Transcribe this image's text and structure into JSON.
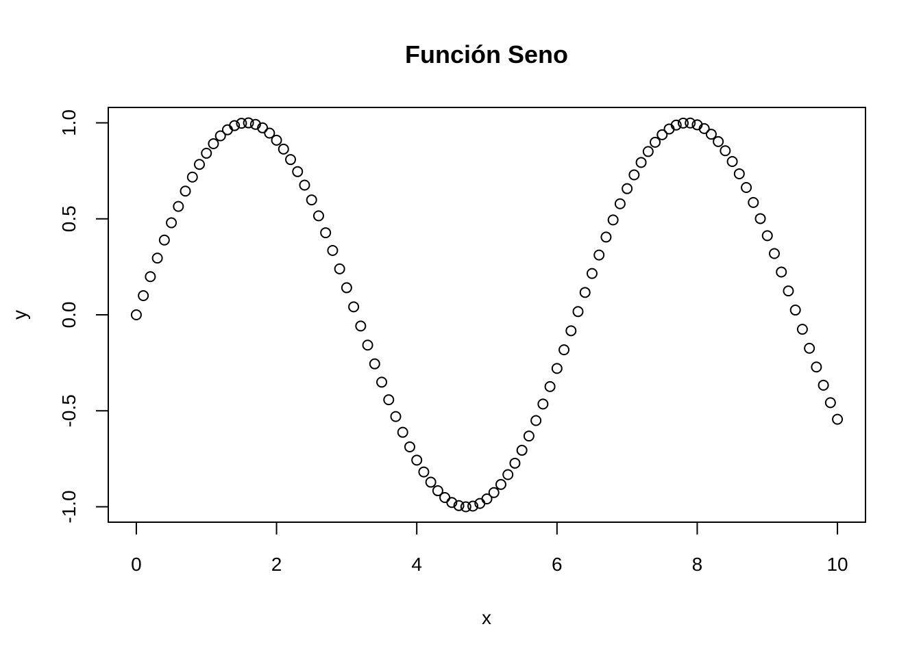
{
  "chart_data": {
    "type": "scatter",
    "title": "Función Seno",
    "xlabel": "x",
    "ylabel": "y",
    "xlim": [
      -0.4,
      10.4
    ],
    "ylim": [
      -1.08,
      1.08
    ],
    "xticks": [
      0,
      2,
      4,
      6,
      8,
      10
    ],
    "xtick_labels": [
      "0",
      "2",
      "4",
      "6",
      "8",
      "10"
    ],
    "yticks": [
      -1.0,
      -0.5,
      0.0,
      0.5,
      1.0
    ],
    "ytick_labels": [
      "-1.0",
      "-0.5",
      "0.0",
      "0.5",
      "1.0"
    ],
    "grid": false,
    "legend": "none",
    "marker": "open-circle",
    "color": "#000000",
    "series": [
      {
        "x": [
          0,
          0.1,
          0.2,
          0.3,
          0.4,
          0.5,
          0.6,
          0.7,
          0.8,
          0.9,
          1,
          1.1,
          1.2,
          1.3,
          1.4,
          1.5,
          1.6,
          1.7,
          1.8,
          1.9,
          2,
          2.1,
          2.2,
          2.3,
          2.4,
          2.5,
          2.6,
          2.7,
          2.8,
          2.9,
          3,
          3.1,
          3.2,
          3.3,
          3.4,
          3.5,
          3.6,
          3.7,
          3.8,
          3.9,
          4,
          4.1,
          4.2,
          4.3,
          4.4,
          4.5,
          4.6,
          4.7,
          4.8,
          4.9,
          5,
          5.1,
          5.2,
          5.3,
          5.4,
          5.5,
          5.6,
          5.7,
          5.8,
          5.9,
          6,
          6.1,
          6.2,
          6.3,
          6.4,
          6.5,
          6.6,
          6.7,
          6.8,
          6.9,
          7,
          7.1,
          7.2,
          7.3,
          7.4,
          7.5,
          7.6,
          7.7,
          7.8,
          7.9,
          8,
          8.1,
          8.2,
          8.3,
          8.4,
          8.5,
          8.6,
          8.7,
          8.8,
          8.9,
          9,
          9.1,
          9.2,
          9.3,
          9.4,
          9.5,
          9.6,
          9.7,
          9.8,
          9.9,
          10
        ],
        "y": [
          0,
          0.0998,
          0.1987,
          0.2955,
          0.3894,
          0.4794,
          0.5646,
          0.6442,
          0.7174,
          0.7833,
          0.8415,
          0.8912,
          0.932,
          0.9636,
          0.9854,
          0.9975,
          0.9996,
          0.9917,
          0.9738,
          0.9463,
          0.9093,
          0.8632,
          0.8085,
          0.7457,
          0.6755,
          0.5985,
          0.5155,
          0.4274,
          0.335,
          0.2392,
          0.1411,
          0.0416,
          -0.0584,
          -0.1577,
          -0.2555,
          -0.3508,
          -0.4425,
          -0.5298,
          -0.6119,
          -0.6878,
          -0.7568,
          -0.8183,
          -0.8716,
          -0.9162,
          -0.9516,
          -0.9775,
          -0.9937,
          -0.9999,
          -0.9962,
          -0.9825,
          -0.9589,
          -0.9258,
          -0.8835,
          -0.8323,
          -0.7728,
          -0.7055,
          -0.6313,
          -0.5507,
          -0.4646,
          -0.3739,
          -0.2794,
          -0.1822,
          -0.0831,
          0.0168,
          0.1165,
          0.2151,
          0.3115,
          0.4048,
          0.4941,
          0.5784,
          0.657,
          0.729,
          0.7937,
          0.8504,
          0.8987,
          0.938,
          0.9679,
          0.9882,
          0.9985,
          0.9989,
          0.9894,
          0.9699,
          0.9407,
          0.9022,
          0.8546,
          0.7985,
          0.7344,
          0.663,
          0.5849,
          0.501,
          0.4121,
          0.319,
          0.2229,
          0.1245,
          0.0248,
          -0.0752,
          -0.1743,
          -0.2718,
          -0.3665,
          -0.4575,
          -0.544
        ]
      }
    ]
  }
}
